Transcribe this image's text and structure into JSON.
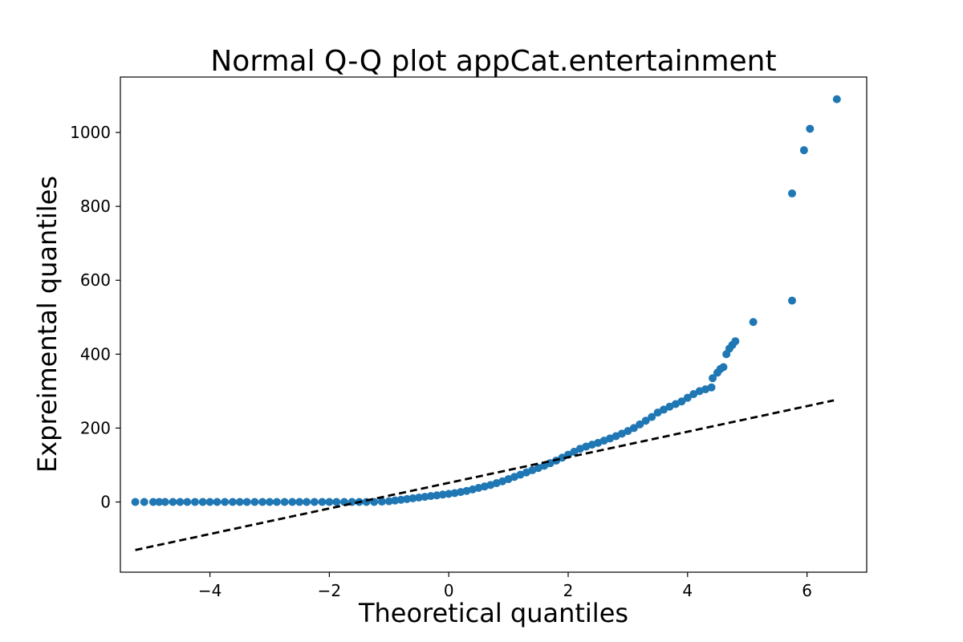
{
  "chart_data": {
    "type": "scatter",
    "title": "Normal Q-Q plot appCat.entertainment",
    "xlabel": "Theoretical quantiles",
    "ylabel": "Expreimental quantiles",
    "xlim": [
      -5.5,
      7.0
    ],
    "ylim": [
      -190,
      1150
    ],
    "x_ticks": [
      -4,
      -2,
      0,
      2,
      4,
      6
    ],
    "x_tick_labels": [
      "−4",
      "−2",
      "0",
      "2",
      "4",
      "6"
    ],
    "y_ticks": [
      0,
      200,
      400,
      600,
      800,
      1000
    ],
    "y_tick_labels": [
      "0",
      "200",
      "400",
      "600",
      "800",
      "1000"
    ],
    "grid": false,
    "marker_color": "#1f77b4",
    "line_color": "#000000",
    "reference_line": {
      "style": "dashed",
      "x": [
        -5.25,
        6.45
      ],
      "y": [
        -130,
        275
      ]
    },
    "series": [
      {
        "x": [
          -5.25,
          -5.1,
          -4.95,
          -4.85,
          -4.75,
          -4.62,
          -4.5,
          -4.38,
          -4.25,
          -4.12,
          -4.0,
          -3.88,
          -3.75,
          -3.62,
          -3.5,
          -3.38,
          -3.25,
          -3.12,
          -3.0,
          -2.88,
          -2.75,
          -2.62,
          -2.5,
          -2.38,
          -2.25,
          -2.12,
          -2.0,
          -1.88,
          -1.75,
          -1.62,
          -1.5,
          -1.38,
          -1.25,
          -1.12,
          -1.0,
          -0.9,
          -0.8,
          -0.7,
          -0.6,
          -0.5,
          -0.4,
          -0.3,
          -0.2,
          -0.1,
          0.0,
          0.1,
          0.2,
          0.3,
          0.4,
          0.5,
          0.6,
          0.7,
          0.8,
          0.9,
          1.0,
          1.1,
          1.2,
          1.3,
          1.4,
          1.5,
          1.6,
          1.7,
          1.8,
          1.9,
          2.0,
          2.1,
          2.2,
          2.3,
          2.4,
          2.5,
          2.6,
          2.7,
          2.8,
          2.9,
          3.0,
          3.1,
          3.2,
          3.3,
          3.4,
          3.5,
          3.6,
          3.7,
          3.8,
          3.9,
          4.0,
          4.1,
          4.2,
          4.3,
          4.4,
          4.42,
          4.5,
          4.55,
          4.6,
          4.65,
          4.7,
          4.75,
          4.8,
          5.1,
          5.75,
          5.75,
          5.95,
          6.05,
          6.5
        ],
        "y": [
          0,
          0,
          0,
          0,
          0,
          0,
          0,
          0,
          0,
          0,
          0,
          0,
          0,
          0,
          0,
          0,
          0,
          0,
          0,
          0,
          0,
          0,
          0,
          0,
          0,
          0,
          0,
          0,
          0,
          0,
          0,
          0,
          0,
          1,
          2,
          4,
          6,
          8,
          10,
          12,
          14,
          16,
          18,
          20,
          22,
          24,
          27,
          30,
          34,
          38,
          42,
          46,
          51,
          56,
          62,
          68,
          74,
          80,
          86,
          92,
          98,
          105,
          112,
          120,
          128,
          136,
          144,
          150,
          155,
          160,
          166,
          172,
          178,
          185,
          192,
          200,
          210,
          220,
          230,
          242,
          250,
          258,
          265,
          272,
          282,
          292,
          300,
          305,
          310,
          335,
          350,
          360,
          365,
          400,
          415,
          425,
          435,
          487,
          545,
          835,
          952,
          1010,
          1090
        ]
      }
    ]
  }
}
